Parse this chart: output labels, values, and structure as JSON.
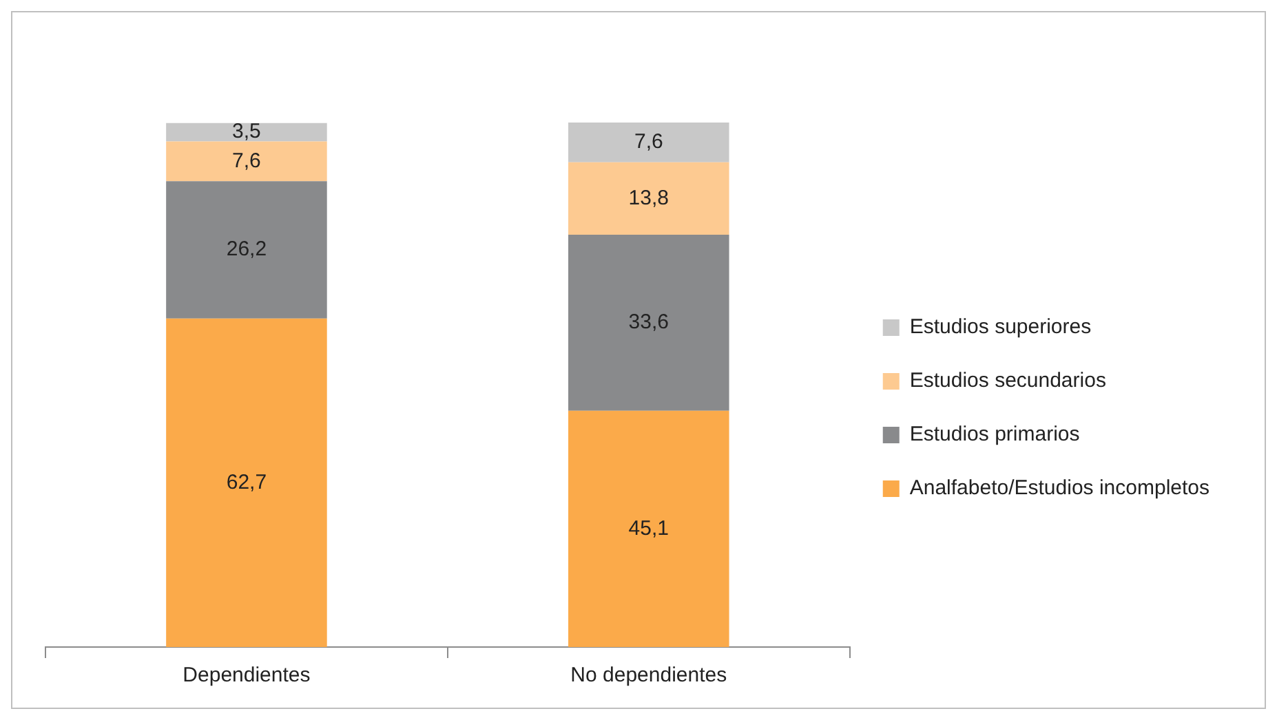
{
  "chart_data": {
    "type": "bar",
    "stacked": true,
    "categories": [
      "Dependientes",
      "No dependientes"
    ],
    "series": [
      {
        "name": "Analfabeto/Estudios incompletos",
        "color": "#fbaa4a",
        "values": [
          62.7,
          45.1
        ],
        "value_labels": [
          "62,7",
          "45,1"
        ]
      },
      {
        "name": "Estudios primarios",
        "color": "#898a8c",
        "values": [
          26.2,
          33.6
        ],
        "value_labels": [
          "26,2",
          "33,6"
        ]
      },
      {
        "name": "Estudios secundarios",
        "color": "#fdca91",
        "values": [
          7.6,
          13.8
        ],
        "value_labels": [
          "7,6",
          "13,8"
        ]
      },
      {
        "name": "Estudios superiores",
        "color": "#c8c8c8",
        "values": [
          3.5,
          7.6
        ],
        "value_labels": [
          "3,5",
          "7,6"
        ]
      }
    ],
    "tick_labels": "x",
    "grid": false,
    "legend": "right"
  }
}
